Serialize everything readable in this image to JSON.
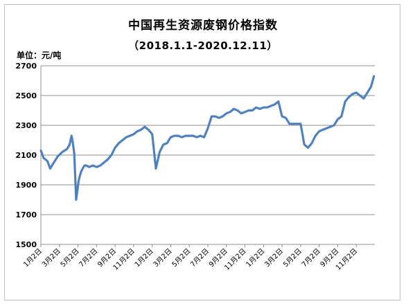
{
  "chart_data": {
    "type": "line",
    "title": "中国再生资源废钢价格指数",
    "subtitle": "（2018.1.1-2020.12.11）",
    "unit_label": "单位：元/吨",
    "ylim": [
      1500,
      2700
    ],
    "yticks": [
      1500,
      1700,
      1900,
      2100,
      2300,
      2500,
      2700
    ],
    "grid": true,
    "line_color": "#4f81bd",
    "xlabels": [
      "1月2日",
      "3月2日",
      "5月2日",
      "7月2日",
      "9月2日",
      "11月2日",
      "1月2日",
      "3月2日",
      "5月2日",
      "7月2日",
      "9月2日",
      "11月2日",
      "1月2日",
      "3月2日",
      "5月2日",
      "7月2日",
      "9月2日",
      "11月2日"
    ],
    "series": [
      {
        "x": [
          0,
          0.3,
          0.7,
          1.0,
          1.3,
          1.8,
          2.3,
          2.8,
          3.1,
          3.3,
          3.45,
          3.6,
          3.8,
          3.95,
          4.05,
          4.2,
          4.35,
          4.5,
          4.7,
          4.9,
          5.2,
          5.6,
          6.0,
          6.4,
          6.8,
          7.2,
          7.6,
          8.0,
          8.4,
          8.8,
          9.2,
          9.6,
          10.0,
          10.4,
          10.8,
          11.2,
          11.6,
          12.0,
          12.4,
          12.8,
          13.2,
          13.6,
          14.0,
          14.4,
          14.8,
          15.2,
          15.6,
          16.0,
          16.4,
          16.8,
          17.2,
          17.6,
          18.0,
          18.4,
          18.8,
          19.2,
          19.6,
          20.0,
          20.4,
          20.8,
          21.2,
          21.6,
          22.0,
          22.4,
          22.8,
          23.2,
          23.6,
          24.0,
          24.4,
          24.8,
          25.2,
          25.6,
          26.0,
          26.4,
          26.8,
          27.2,
          27.6,
          28.0,
          28.4,
          28.8,
          29.2,
          29.6,
          30.0,
          30.4,
          30.8,
          31.2,
          31.6,
          32.0,
          32.4,
          32.8,
          33.2,
          33.6,
          34.0,
          34.4,
          34.8,
          35.2,
          35.6,
          35.9
        ],
        "y": [
          2130,
          2080,
          2060,
          2010,
          2040,
          2090,
          2120,
          2140,
          2170,
          2230,
          2180,
          2110,
          1800,
          1870,
          1920,
          1960,
          1990,
          2010,
          2030,
          2030,
          2020,
          2030,
          2020,
          2030,
          2050,
          2070,
          2100,
          2150,
          2180,
          2200,
          2220,
          2230,
          2240,
          2260,
          2270,
          2290,
          2270,
          2240,
          2010,
          2120,
          2170,
          2180,
          2220,
          2230,
          2230,
          2220,
          2230,
          2230,
          2230,
          2220,
          2230,
          2220,
          2280,
          2360,
          2360,
          2350,
          2360,
          2380,
          2390,
          2410,
          2400,
          2380,
          2390,
          2400,
          2400,
          2420,
          2410,
          2420,
          2420,
          2430,
          2440,
          2460,
          2360,
          2350,
          2310,
          2310,
          2310,
          2310,
          2170,
          2150,
          2180,
          2230,
          2260,
          2270,
          2280,
          2290,
          2300,
          2340,
          2360,
          2460,
          2490,
          2510,
          2520,
          2500,
          2480,
          2520,
          2560,
          2630
        ]
      }
    ]
  }
}
